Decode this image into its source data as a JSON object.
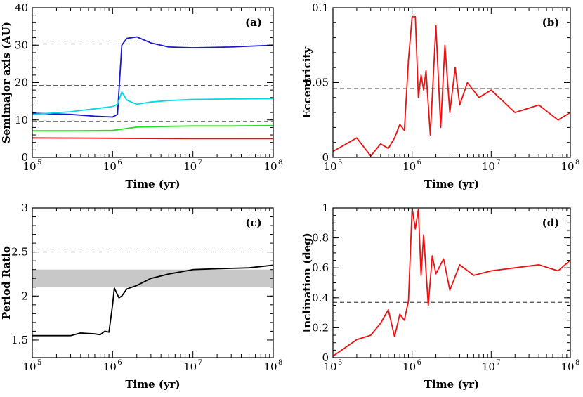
{
  "chart_data": [
    {
      "panel_label": "(a)",
      "type": "line",
      "xlabel": "Time (yr)",
      "ylabel": "Semimajor axis (AU)",
      "xscale": "log",
      "xlim": [
        100000,
        100000000
      ],
      "ylim": [
        0,
        40
      ],
      "xtick_labels": [
        {
          "base": "10",
          "exp": "5"
        },
        {
          "base": "10",
          "exp": "6"
        },
        {
          "base": "10",
          "exp": "7"
        },
        {
          "base": "10",
          "exp": "8"
        }
      ],
      "ytick_labels": [
        "0",
        "10",
        "20",
        "30",
        "40"
      ],
      "reference_lines": [
        30.3,
        19.2,
        9.6
      ],
      "series": [
        {
          "color": "#1a1acd",
          "style": "solid",
          "x": [
            100000,
            300000,
            600000,
            1000000,
            1150000,
            1300000,
            1500000,
            2000000,
            3000000,
            5000000,
            10000000,
            30000000,
            100000000
          ],
          "values": [
            11.8,
            11.5,
            11.0,
            10.8,
            11.5,
            30.0,
            31.8,
            32.2,
            30.6,
            29.5,
            29.3,
            29.5,
            30.0
          ]
        },
        {
          "color": "#00d8e6",
          "style": "solid",
          "x": [
            100000,
            300000,
            600000,
            1000000,
            1150000,
            1300000,
            1500000,
            2000000,
            3000000,
            5000000,
            10000000,
            30000000,
            100000000
          ],
          "values": [
            11.5,
            12.2,
            13.0,
            13.6,
            14.2,
            17.5,
            15.3,
            14.2,
            14.8,
            15.2,
            15.5,
            15.6,
            15.7
          ]
        },
        {
          "color": "#22dd22",
          "style": "solid",
          "x": [
            100000,
            300000,
            1000000,
            2000000,
            5000000,
            10000000,
            30000000,
            100000000
          ],
          "values": [
            7.1,
            7.1,
            7.2,
            8.1,
            8.3,
            8.4,
            8.4,
            8.5
          ]
        },
        {
          "color": "#dd1111",
          "style": "solid",
          "x": [
            100000,
            1000000,
            10000000,
            100000000
          ],
          "values": [
            5.2,
            5.1,
            5.0,
            5.0
          ]
        }
      ]
    },
    {
      "panel_label": "(b)",
      "type": "line",
      "xlabel": "Time (yr)",
      "ylabel": "Eccentricity",
      "xscale": "log",
      "xlim": [
        100000,
        100000000
      ],
      "ylim": [
        0,
        0.1
      ],
      "xtick_labels": [
        {
          "base": "10",
          "exp": "5"
        },
        {
          "base": "10",
          "exp": "6"
        },
        {
          "base": "10",
          "exp": "7"
        },
        {
          "base": "10",
          "exp": "8"
        }
      ],
      "ytick_labels": [
        "0",
        "0.05",
        "0.1"
      ],
      "reference_lines": [
        0.046
      ],
      "series": [
        {
          "color": "#ee1111",
          "style": "solid",
          "x": [
            100000,
            200000,
            300000,
            400000,
            500000,
            600000,
            700000,
            800000,
            900000,
            1000000,
            1100000,
            1200000,
            1300000,
            1400000,
            1500000,
            1700000,
            2000000,
            2300000,
            2600000,
            3000000,
            3500000,
            4000000,
            5000000,
            7000000,
            10000000,
            20000000,
            40000000,
            70000000,
            100000000
          ],
          "values": [
            0.004,
            0.013,
            0.001,
            0.009,
            0.006,
            0.013,
            0.022,
            0.018,
            0.065,
            0.094,
            0.094,
            0.04,
            0.055,
            0.045,
            0.058,
            0.015,
            0.088,
            0.02,
            0.075,
            0.03,
            0.06,
            0.035,
            0.05,
            0.04,
            0.045,
            0.03,
            0.035,
            0.025,
            0.03
          ]
        }
      ]
    },
    {
      "panel_label": "(c)",
      "type": "line",
      "xlabel": "Time (yr)",
      "ylabel": "Period Ratio",
      "xscale": "log",
      "xlim": [
        100000,
        100000000
      ],
      "ylim": [
        1.3,
        3.0
      ],
      "xtick_labels": [
        {
          "base": "10",
          "exp": "5"
        },
        {
          "base": "10",
          "exp": "6"
        },
        {
          "base": "10",
          "exp": "7"
        },
        {
          "base": "10",
          "exp": "8"
        }
      ],
      "ytick_labels": [
        "1.5",
        "2",
        "2.5",
        "3"
      ],
      "reference_lines": [
        2.5
      ],
      "shaded_band": [
        2.1,
        2.3
      ],
      "series": [
        {
          "color": "#000000",
          "style": "solid",
          "x": [
            100000,
            300000,
            400000,
            600000,
            700000,
            800000,
            900000,
            1000000,
            1050000,
            1100000,
            1200000,
            1300000,
            1500000,
            2000000,
            3000000,
            5000000,
            10000000,
            20000000,
            50000000,
            100000000
          ],
          "values": [
            1.55,
            1.55,
            1.58,
            1.57,
            1.56,
            1.6,
            1.59,
            1.9,
            2.09,
            2.05,
            1.98,
            2.0,
            2.08,
            2.12,
            2.2,
            2.25,
            2.3,
            2.31,
            2.32,
            2.35
          ]
        }
      ]
    },
    {
      "panel_label": "(d)",
      "type": "line",
      "xlabel": "Time (yr)",
      "ylabel": "Inclination (deg)",
      "xscale": "log",
      "xlim": [
        100000,
        100000000
      ],
      "ylim": [
        0,
        1
      ],
      "xtick_labels": [
        {
          "base": "10",
          "exp": "5"
        },
        {
          "base": "10",
          "exp": "6"
        },
        {
          "base": "10",
          "exp": "7"
        },
        {
          "base": "10",
          "exp": "8"
        }
      ],
      "ytick_labels": [
        "0",
        "0.2",
        "0.4",
        "0.6",
        "0.8",
        "1"
      ],
      "reference_lines": [
        0.37
      ],
      "series": [
        {
          "color": "#ee1111",
          "style": "solid",
          "x": [
            100000,
            200000,
            300000,
            400000,
            500000,
            600000,
            700000,
            800000,
            900000,
            1000000,
            1100000,
            1200000,
            1300000,
            1400000,
            1600000,
            1800000,
            2000000,
            2500000,
            3000000,
            4000000,
            6000000,
            10000000,
            20000000,
            40000000,
            70000000,
            100000000
          ],
          "values": [
            0.01,
            0.12,
            0.15,
            0.23,
            0.32,
            0.14,
            0.29,
            0.25,
            0.38,
            1.0,
            0.86,
            0.99,
            0.55,
            0.82,
            0.35,
            0.68,
            0.56,
            0.66,
            0.45,
            0.62,
            0.55,
            0.58,
            0.6,
            0.62,
            0.58,
            0.65
          ]
        }
      ]
    }
  ]
}
